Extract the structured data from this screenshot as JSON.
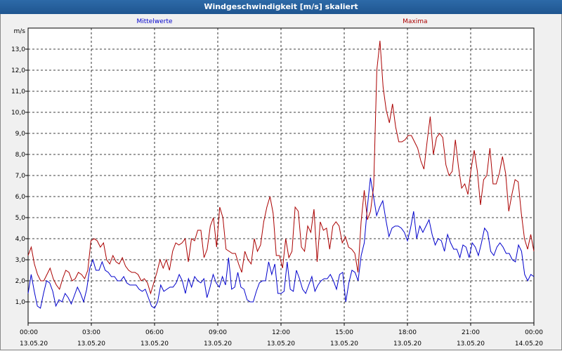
{
  "window": {
    "title": "Windgeschwindigkeit [m/s] skaliert"
  },
  "chart_data": {
    "type": "line",
    "ylabel": "m/s",
    "ylim": [
      0,
      14
    ],
    "xlim": [
      0,
      24
    ],
    "grid": true,
    "y_ticks": [
      "1,0",
      "2,0",
      "3,0",
      "4,0",
      "5,0",
      "6,0",
      "7,0",
      "8,0",
      "9,0",
      "10,0",
      "11,0",
      "12,0",
      "13,0"
    ],
    "x_ticks": [
      {
        "time": "00:00",
        "date": "13.05.20"
      },
      {
        "time": "03:00",
        "date": "13.05.20"
      },
      {
        "time": "06:00",
        "date": "13.05.20"
      },
      {
        "time": "09:00",
        "date": "13.05.20"
      },
      {
        "time": "12:00",
        "date": "13.05.20"
      },
      {
        "time": "15:00",
        "date": "13.05.20"
      },
      {
        "time": "18:00",
        "date": "13.05.20"
      },
      {
        "time": "21:00",
        "date": "13.05.20"
      },
      {
        "time": "00:00",
        "date": "14.05.20"
      }
    ],
    "series": [
      {
        "name": "Mittelwerte",
        "color": "#0000cc",
        "values": [
          1.4,
          2.3,
          1.5,
          0.8,
          0.7,
          1.4,
          2.0,
          1.9,
          1.5,
          0.8,
          1.1,
          1.0,
          1.4,
          1.2,
          0.9,
          1.3,
          1.7,
          1.4,
          1.0,
          1.6,
          2.6,
          3.0,
          2.5,
          2.5,
          2.9,
          2.5,
          2.4,
          2.2,
          2.2,
          2.0,
          2.0,
          2.2,
          1.9,
          1.8,
          1.8,
          1.8,
          1.6,
          1.5,
          1.6,
          1.2,
          0.8,
          0.7,
          1.0,
          1.8,
          1.5,
          1.6,
          1.7,
          1.7,
          1.9,
          2.3,
          2.0,
          1.4,
          2.1,
          1.7,
          2.2,
          2.0,
          1.9,
          2.1,
          1.2,
          1.7,
          2.3,
          1.9,
          1.7,
          2.2,
          1.8,
          3.1,
          1.6,
          1.7,
          2.4,
          1.7,
          1.6,
          1.1,
          1.0,
          1.0,
          1.5,
          1.9,
          2.0,
          2.0,
          2.9,
          2.3,
          2.8,
          1.4,
          1.4,
          1.5,
          2.9,
          1.6,
          1.5,
          2.5,
          2.1,
          1.6,
          1.4,
          1.8,
          2.2,
          1.5,
          1.8,
          2.0,
          2.1,
          2.1,
          2.3,
          2.0,
          1.6,
          2.3,
          2.4,
          1.0,
          1.9,
          2.5,
          2.4,
          2.0,
          3.2,
          3.8,
          5.5,
          6.9,
          6.0,
          5.1,
          5.5,
          5.8,
          4.9,
          4.1,
          4.5,
          4.6,
          4.6,
          4.5,
          4.3,
          3.9,
          4.5,
          5.3,
          4.0,
          4.6,
          4.3,
          4.6,
          4.9,
          4.2,
          3.7,
          4.0,
          3.9,
          3.4,
          4.2,
          3.8,
          3.5,
          3.5,
          3.1,
          3.7,
          3.6,
          3.1,
          3.8,
          3.6,
          3.2,
          3.8,
          4.5,
          4.3,
          3.4,
          3.2,
          3.6,
          3.8,
          3.6,
          3.3,
          3.3,
          3.0,
          2.9,
          3.7,
          3.4,
          2.3,
          2.0,
          2.3,
          2.2
        ]
      },
      {
        "name": "Maxima",
        "color": "#aa0000",
        "values": [
          3.2,
          3.6,
          2.8,
          2.3,
          2.0,
          2.0,
          2.3,
          2.6,
          2.1,
          1.8,
          1.6,
          2.1,
          2.5,
          2.4,
          2.0,
          2.1,
          2.4,
          2.3,
          2.1,
          2.5,
          3.9,
          4.0,
          3.9,
          3.6,
          3.8,
          3.0,
          2.8,
          3.2,
          2.9,
          2.8,
          3.1,
          2.7,
          2.5,
          2.4,
          2.4,
          2.3,
          2.0,
          2.1,
          1.9,
          1.4,
          1.9,
          2.4,
          3.0,
          2.6,
          3.0,
          2.5,
          3.4,
          3.8,
          3.7,
          3.8,
          4.0,
          2.9,
          4.0,
          3.9,
          4.4,
          4.4,
          3.1,
          3.5,
          4.6,
          5.0,
          3.6,
          5.5,
          5.0,
          3.5,
          3.4,
          3.3,
          3.3,
          2.8,
          2.4,
          3.4,
          3.0,
          2.8,
          4.0,
          3.4,
          3.7,
          4.8,
          5.5,
          6.0,
          5.2,
          3.2,
          3.2,
          2.6,
          4.0,
          3.1,
          3.4,
          5.5,
          5.3,
          3.6,
          3.4,
          4.6,
          4.3,
          5.4,
          2.9,
          4.8,
          4.4,
          4.5,
          3.5,
          4.6,
          4.8,
          4.6,
          3.8,
          4.1,
          3.6,
          3.5,
          3.3,
          2.4,
          4.8,
          6.3,
          4.9,
          5.3,
          6.5,
          12.0,
          13.4,
          11.2,
          10.1,
          9.5,
          10.4,
          9.3,
          8.6,
          8.6,
          8.7,
          8.9,
          8.9,
          8.6,
          8.3,
          7.7,
          7.3,
          8.6,
          9.8,
          8.0,
          8.8,
          9.0,
          8.8,
          7.5,
          7.0,
          7.2,
          8.7,
          7.4,
          6.4,
          6.6,
          6.1,
          7.3,
          8.2,
          7.2,
          5.6,
          6.8,
          7.0,
          8.3,
          6.6,
          6.6,
          7.1,
          7.9,
          7.1,
          5.3,
          6.1,
          6.8,
          6.7,
          5.2,
          4.0,
          3.5,
          4.2,
          3.4
        ]
      }
    ]
  }
}
